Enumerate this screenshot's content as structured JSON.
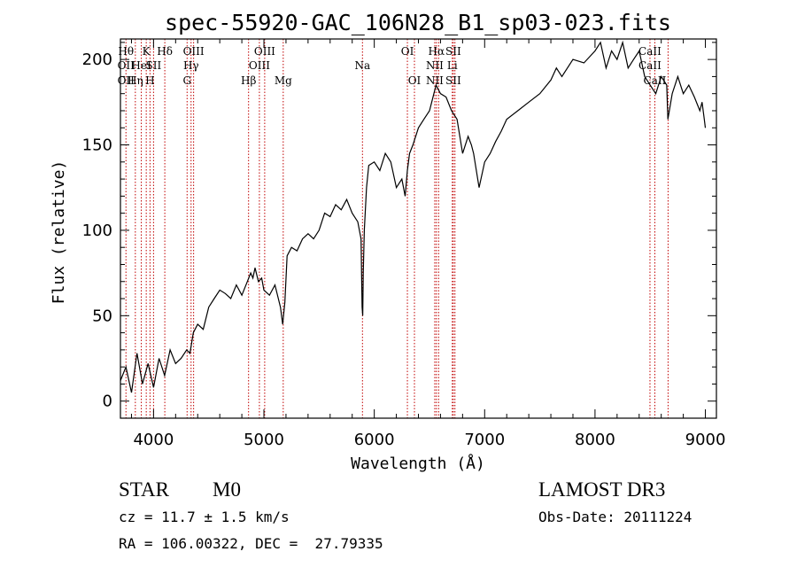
{
  "chart_data": {
    "type": "line",
    "title": "spec-55920-GAC_106N28_B1_sp03-023.fits",
    "xlabel": "Wavelength (Å)",
    "ylabel": "Flux (relative)",
    "xlim": [
      3700,
      9100
    ],
    "ylim": [
      -10,
      212
    ],
    "xticks": [
      4000,
      5000,
      6000,
      7000,
      8000,
      9000
    ],
    "yticks": [
      0,
      50,
      100,
      150,
      200
    ],
    "series": [
      {
        "x": [
          3700,
          3750,
          3800,
          3850,
          3900,
          3950,
          4000,
          4050,
          4100,
          4150,
          4200,
          4250,
          4300,
          4330,
          4360,
          4400,
          4450,
          4500,
          4550,
          4600,
          4650,
          4700,
          4750,
          4800,
          4850,
          4880,
          4900,
          4920,
          4950,
          4980,
          5000,
          5050,
          5100,
          5150,
          5170,
          5190,
          5210,
          5250,
          5300,
          5350,
          5400,
          5450,
          5500,
          5550,
          5600,
          5650,
          5700,
          5750,
          5800,
          5850,
          5880,
          5890,
          5895,
          5900,
          5910,
          5930,
          5950,
          6000,
          6050,
          6100,
          6150,
          6200,
          6250,
          6280,
          6300,
          6320,
          6350,
          6400,
          6450,
          6500,
          6520,
          6560,
          6600,
          6650,
          6700,
          6750,
          6800,
          6850,
          6880,
          6900,
          6950,
          7000,
          7050,
          7100,
          7150,
          7200,
          7300,
          7400,
          7500,
          7600,
          7650,
          7700,
          7800,
          7900,
          8000,
          8050,
          8100,
          8150,
          8200,
          8250,
          8300,
          8350,
          8400,
          8450,
          8500,
          8550,
          8600,
          8650,
          8660,
          8700,
          8750,
          8800,
          8850,
          8900,
          8950,
          8970,
          8990,
          9000
        ],
        "y": [
          12,
          20,
          5,
          28,
          10,
          22,
          8,
          25,
          15,
          30,
          22,
          25,
          30,
          28,
          40,
          45,
          42,
          55,
          60,
          65,
          63,
          60,
          68,
          62,
          70,
          75,
          72,
          78,
          70,
          72,
          65,
          62,
          68,
          55,
          45,
          58,
          85,
          90,
          88,
          95,
          98,
          95,
          100,
          110,
          108,
          115,
          112,
          118,
          110,
          105,
          95,
          55,
          50,
          75,
          100,
          125,
          138,
          140,
          135,
          145,
          140,
          125,
          130,
          120,
          135,
          145,
          150,
          160,
          165,
          170,
          175,
          185,
          180,
          178,
          170,
          165,
          145,
          155,
          150,
          145,
          125,
          140,
          145,
          152,
          158,
          165,
          170,
          175,
          180,
          188,
          195,
          190,
          200,
          198,
          205,
          210,
          195,
          205,
          200,
          210,
          195,
          200,
          205,
          190,
          185,
          180,
          190,
          185,
          165,
          180,
          190,
          180,
          185,
          178,
          170,
          175,
          165,
          160
        ]
      }
    ],
    "lines": [
      {
        "wl": 3750,
        "rows": [
          {
            "t": "Hθ",
            "r": 1
          },
          {
            "t": "OII",
            "r": 2
          },
          {
            "t": "OII",
            "r": 3
          }
        ]
      },
      {
        "wl": 3835,
        "rows": [
          {
            "t": "Hη",
            "r": 3
          }
        ]
      },
      {
        "wl": 3889,
        "rows": [
          {
            "t": "HeI",
            "r": 2
          }
        ]
      },
      {
        "wl": 3934,
        "rows": [
          {
            "t": "K",
            "r": 1
          }
        ]
      },
      {
        "wl": 3968,
        "rows": [
          {
            "t": "H",
            "r": 3
          }
        ]
      },
      {
        "wl": 4000,
        "rows": [
          {
            "t": "SII",
            "r": 2
          }
        ]
      },
      {
        "wl": 4102,
        "rows": [
          {
            "t": "Hδ",
            "r": 1
          }
        ]
      },
      {
        "wl": 4304,
        "rows": [
          {
            "t": "G",
            "r": 3
          }
        ]
      },
      {
        "wl": 4340,
        "rows": [
          {
            "t": "Hγ",
            "r": 2
          }
        ]
      },
      {
        "wl": 4363,
        "rows": [
          {
            "t": "OIII",
            "r": 1
          }
        ]
      },
      {
        "wl": 4861,
        "rows": [
          {
            "t": "Hβ",
            "r": 3
          }
        ]
      },
      {
        "wl": 4959,
        "rows": [
          {
            "t": "OIII",
            "r": 2
          }
        ]
      },
      {
        "wl": 5007,
        "rows": [
          {
            "t": "OIII",
            "r": 1
          }
        ]
      },
      {
        "wl": 5175,
        "rows": [
          {
            "t": "Mg",
            "r": 3
          }
        ]
      },
      {
        "wl": 5893,
        "rows": [
          {
            "t": "Na",
            "r": 2
          }
        ]
      },
      {
        "wl": 6300,
        "rows": [
          {
            "t": "OI",
            "r": 1
          }
        ]
      },
      {
        "wl": 6364,
        "rows": [
          {
            "t": "OI",
            "r": 3
          }
        ]
      },
      {
        "wl": 6548,
        "rows": [
          {
            "t": "NII",
            "r": 2
          },
          {
            "t": "NII",
            "r": 3
          }
        ]
      },
      {
        "wl": 6563,
        "rows": [
          {
            "t": "Hα",
            "r": 1
          }
        ]
      },
      {
        "wl": 6583,
        "rows": []
      },
      {
        "wl": 6707,
        "rows": [
          {
            "t": "Li",
            "r": 2
          }
        ]
      },
      {
        "wl": 6716,
        "rows": [
          {
            "t": "SII",
            "r": 1
          },
          {
            "t": "SII",
            "r": 3
          }
        ]
      },
      {
        "wl": 6731,
        "rows": []
      },
      {
        "wl": 8498,
        "rows": [
          {
            "t": "CaII",
            "r": 1
          },
          {
            "t": "CaII",
            "r": 2
          }
        ]
      },
      {
        "wl": 8542,
        "rows": [
          {
            "t": "CaII",
            "r": 3
          }
        ]
      },
      {
        "wl": 8662,
        "rows": []
      }
    ],
    "colors": {
      "spectrum": "#000000",
      "line_marker": "#c00000"
    }
  },
  "info": {
    "class": "STAR",
    "subclass": "M0",
    "survey": "LAMOST DR3",
    "cz": "cz = 11.7 ± 1.5 km/s",
    "obsdate": "Obs-Date: 20111224",
    "radec": "RA = 106.00322, DEC =  27.79335"
  }
}
